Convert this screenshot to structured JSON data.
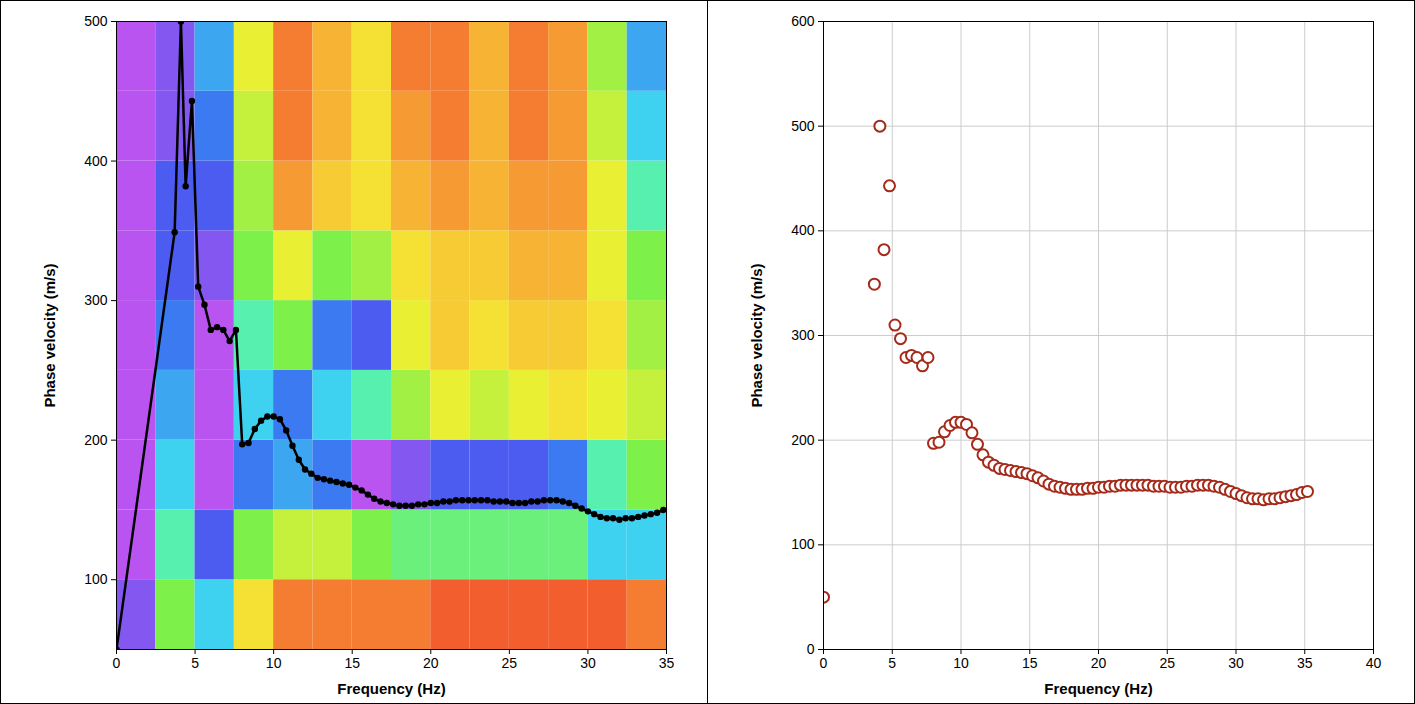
{
  "chart_data": [
    {
      "type": "heatmap",
      "xlabel": "Frequency (Hz)",
      "ylabel": "Phase velocity (m/s)",
      "xlim": [
        0,
        35
      ],
      "ylim": [
        50,
        500
      ],
      "xticks": [
        0,
        5,
        10,
        15,
        20,
        25,
        30,
        35
      ],
      "yticks": [
        100,
        200,
        300,
        400,
        500
      ],
      "grid": false,
      "heatmap": {
        "x_edges": [
          0,
          2.5,
          5,
          7.5,
          10,
          12.5,
          15,
          17.5,
          20,
          22.5,
          25,
          27.5,
          30,
          32.5,
          35
        ],
        "y_edges": [
          50,
          100,
          150,
          200,
          250,
          300,
          350,
          400,
          450,
          500
        ],
        "zlim": [
          0,
          1
        ],
        "values": [
          [
            0.9,
            0.5,
            0.7,
            0.3,
            0.1,
            0.1,
            0.1,
            0.1,
            0.05,
            0.05,
            0.05,
            0.05,
            0.05,
            0.1
          ],
          [
            0.95,
            0.6,
            0.85,
            0.5,
            0.4,
            0.4,
            0.5,
            0.55,
            0.55,
            0.55,
            0.55,
            0.55,
            0.7,
            0.7
          ],
          [
            0.95,
            0.7,
            0.95,
            0.8,
            0.75,
            0.8,
            0.95,
            0.9,
            0.85,
            0.85,
            0.85,
            0.8,
            0.6,
            0.5
          ],
          [
            0.95,
            0.75,
            0.95,
            0.7,
            0.8,
            0.7,
            0.6,
            0.45,
            0.35,
            0.4,
            0.35,
            0.3,
            0.35,
            0.4
          ],
          [
            0.95,
            0.8,
            0.95,
            0.6,
            0.5,
            0.8,
            0.85,
            0.35,
            0.25,
            0.3,
            0.25,
            0.25,
            0.3,
            0.45
          ],
          [
            0.95,
            0.85,
            0.9,
            0.5,
            0.35,
            0.5,
            0.45,
            0.3,
            0.25,
            0.25,
            0.2,
            0.2,
            0.35,
            0.5
          ],
          [
            0.95,
            0.85,
            0.85,
            0.45,
            0.15,
            0.25,
            0.3,
            0.2,
            0.15,
            0.2,
            0.15,
            0.15,
            0.35,
            0.6
          ],
          [
            0.95,
            0.9,
            0.8,
            0.4,
            0.1,
            0.2,
            0.3,
            0.15,
            0.1,
            0.2,
            0.1,
            0.15,
            0.4,
            0.7
          ],
          [
            0.95,
            0.9,
            0.75,
            0.35,
            0.1,
            0.2,
            0.3,
            0.1,
            0.1,
            0.2,
            0.1,
            0.15,
            0.45,
            0.75
          ]
        ]
      },
      "series": [
        {
          "color": "#000000",
          "marker": "circle",
          "line_style": "solid",
          "x": [
            0,
            3.7,
            4.1,
            4.4,
            4.8,
            5.2,
            5.6,
            6.0,
            6.4,
            6.8,
            7.2,
            7.6,
            8.0,
            8.4,
            8.8,
            9.2,
            9.6,
            10.0,
            10.4,
            10.8,
            11.2,
            11.6,
            12.0,
            12.4,
            12.8,
            13.2,
            13.6,
            14.0,
            14.4,
            14.8,
            15.2,
            15.6,
            16.0,
            16.4,
            16.8,
            17.2,
            17.6,
            18.0,
            18.4,
            18.8,
            19.2,
            19.6,
            20.0,
            20.4,
            20.8,
            21.2,
            21.6,
            22.0,
            22.4,
            22.8,
            23.2,
            23.6,
            24.0,
            24.4,
            24.8,
            25.2,
            25.6,
            26.0,
            26.4,
            26.8,
            27.2,
            27.6,
            28.0,
            28.4,
            28.8,
            29.2,
            29.6,
            30.0,
            30.4,
            30.8,
            31.2,
            31.6,
            32.0,
            32.4,
            32.8,
            33.2,
            33.6,
            34.0,
            34.4,
            34.8,
            35.2
          ],
          "values": [
            50,
            349,
            500,
            382,
            443,
            310,
            297,
            279,
            281,
            279,
            271,
            279,
            197,
            198,
            208,
            214,
            217,
            217,
            215,
            207,
            196,
            186,
            179,
            176,
            173,
            172,
            171,
            170,
            169,
            168,
            166,
            164,
            161,
            158,
            156,
            155,
            154,
            153,
            153,
            153,
            154,
            154,
            155,
            155,
            156,
            156,
            157,
            157,
            157,
            157,
            157,
            157,
            156,
            156,
            156,
            155,
            155,
            155,
            156,
            156,
            157,
            157,
            157,
            156,
            155,
            153,
            151,
            149,
            147,
            145,
            144,
            144,
            143,
            144,
            144,
            145,
            146,
            147,
            148,
            150,
            151
          ]
        }
      ]
    },
    {
      "type": "scatter",
      "xlabel": "Frequency (Hz)",
      "ylabel": "Phase velocity (m/s)",
      "xlim": [
        0,
        40
      ],
      "ylim": [
        0,
        600
      ],
      "xticks": [
        0,
        5,
        10,
        15,
        20,
        25,
        30,
        35,
        40
      ],
      "yticks": [
        0,
        100,
        200,
        300,
        400,
        500,
        600
      ],
      "grid": true,
      "series": [
        {
          "color": "#a52a1a",
          "marker": "open_circle",
          "x": [
            0,
            3.7,
            4.1,
            4.4,
            4.8,
            5.2,
            5.6,
            6.0,
            6.4,
            6.8,
            7.2,
            7.6,
            8.0,
            8.4,
            8.8,
            9.2,
            9.6,
            10.0,
            10.4,
            10.8,
            11.2,
            11.6,
            12.0,
            12.4,
            12.8,
            13.2,
            13.6,
            14.0,
            14.4,
            14.8,
            15.2,
            15.6,
            16.0,
            16.4,
            16.8,
            17.2,
            17.6,
            18.0,
            18.4,
            18.8,
            19.2,
            19.6,
            20.0,
            20.4,
            20.8,
            21.2,
            21.6,
            22.0,
            22.4,
            22.8,
            23.2,
            23.6,
            24.0,
            24.4,
            24.8,
            25.2,
            25.6,
            26.0,
            26.4,
            26.8,
            27.2,
            27.6,
            28.0,
            28.4,
            28.8,
            29.2,
            29.6,
            30.0,
            30.4,
            30.8,
            31.2,
            31.6,
            32.0,
            32.4,
            32.8,
            33.2,
            33.6,
            34.0,
            34.4,
            34.8,
            35.2
          ],
          "values": [
            50,
            349,
            500,
            382,
            443,
            310,
            297,
            279,
            281,
            279,
            271,
            279,
            197,
            198,
            208,
            214,
            217,
            217,
            215,
            207,
            196,
            186,
            179,
            176,
            173,
            172,
            171,
            170,
            169,
            168,
            166,
            164,
            161,
            158,
            156,
            155,
            154,
            153,
            153,
            153,
            154,
            154,
            155,
            155,
            156,
            156,
            157,
            157,
            157,
            157,
            157,
            157,
            156,
            156,
            156,
            155,
            155,
            155,
            156,
            156,
            157,
            157,
            157,
            156,
            155,
            153,
            151,
            149,
            147,
            145,
            144,
            144,
            143,
            144,
            144,
            145,
            146,
            147,
            148,
            150,
            151
          ]
        }
      ]
    }
  ]
}
